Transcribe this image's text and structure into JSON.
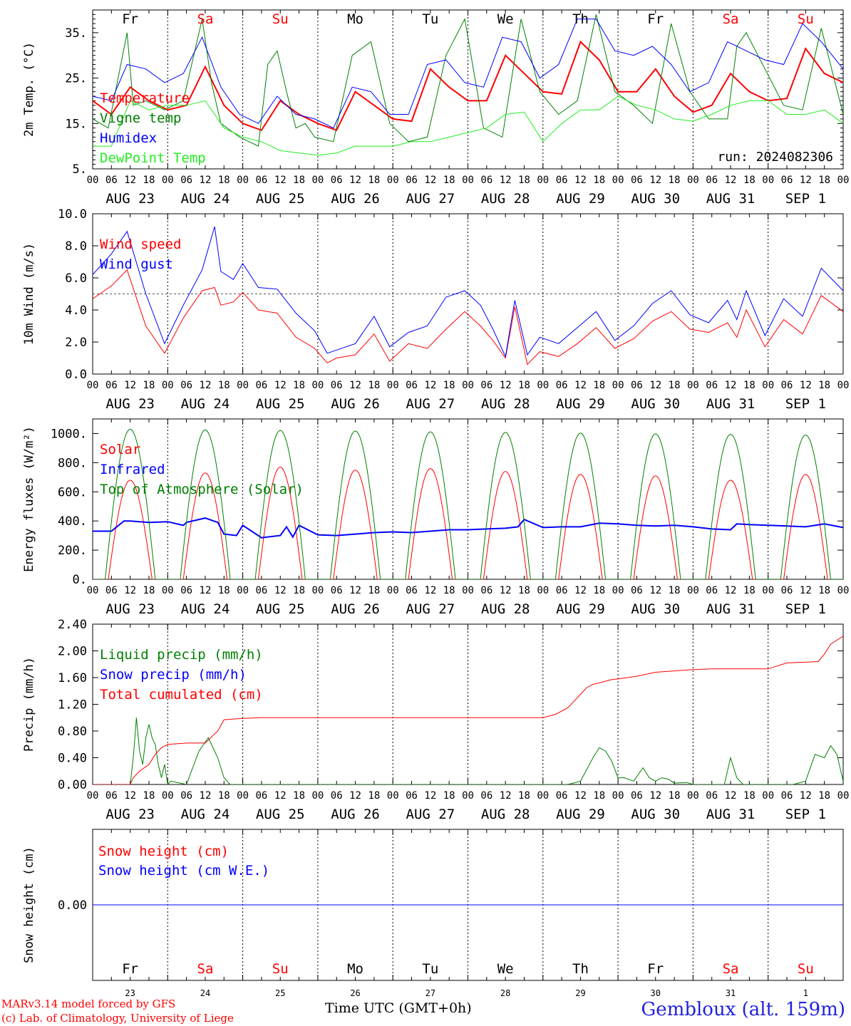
{
  "run_label": "run: 2024082306",
  "days": [
    "Fr",
    "Sa",
    "Su",
    "Mo",
    "Tu",
    "We",
    "Th",
    "Fr",
    "Sa",
    "Su"
  ],
  "weekend_flags": [
    false,
    true,
    true,
    false,
    false,
    false,
    false,
    false,
    true,
    true
  ],
  "date_labels": [
    "AUG 23",
    "AUG 24",
    "AUG 25",
    "AUG 26",
    "AUG 27",
    "AUG 28",
    "AUG 29",
    "AUG 30",
    "AUG 31",
    "SEP  1"
  ],
  "day_numbers": [
    "23",
    "24",
    "25",
    "26",
    "27",
    "28",
    "29",
    "30",
    "31",
    "1"
  ],
  "hour_ticks": [
    "00",
    "06",
    "12",
    "18"
  ],
  "end_tick": "00",
  "footer": {
    "model": "MARv3.14 model forced by GFS",
    "credit": "(c) Lab. of Climatology, University of Liege",
    "time_axis": "Time UTC (GMT+0h)",
    "station": "Gembloux (alt. 159m)"
  },
  "colors": {
    "red": "#ff0000",
    "green": "#008000",
    "blue": "#0000ff",
    "lightgreen": "#22ee22",
    "weekend": "#ff0000"
  },
  "chart_data": [
    {
      "id": "temp",
      "type": "line",
      "ylabel": "2m Temp. (°C)",
      "ylim": [
        5,
        40
      ],
      "yticks": [
        5,
        15,
        25,
        35
      ],
      "ytick_labels": [
        "5.",
        "15.",
        "25.",
        "35."
      ],
      "x_unit": "hours since 2024-08-23 00 UTC",
      "xlim": [
        0,
        240
      ],
      "series": [
        {
          "name": "Temperature",
          "color": "#ff0000",
          "width": 2,
          "x": [
            0,
            6,
            12,
            18,
            24,
            30,
            36,
            42,
            48,
            54,
            60,
            66,
            72,
            78,
            84,
            90,
            96,
            102,
            108,
            114,
            120,
            126,
            132,
            138,
            144,
            150,
            156,
            162,
            168,
            174,
            180,
            186,
            192,
            198,
            204,
            210,
            216,
            222,
            228,
            234,
            240
          ],
          "y": [
            20,
            17,
            23,
            20,
            18,
            19,
            27.5,
            19,
            15,
            13.5,
            20,
            17,
            15,
            13.5,
            22,
            19,
            16,
            15.5,
            27,
            23,
            20,
            20,
            30,
            26,
            22,
            21.5,
            33,
            29,
            22,
            22,
            27,
            21,
            17.5,
            19,
            26,
            22,
            20,
            20.5,
            31.5,
            26,
            24
          ]
        },
        {
          "name": "Vigne temp",
          "color": "#008000",
          "width": 1,
          "x": [
            0,
            5,
            11,
            13,
            17,
            23,
            29,
            35,
            38,
            41,
            47,
            53,
            56,
            59,
            62,
            65,
            68,
            71,
            77,
            83,
            89,
            95,
            101,
            107,
            113,
            119,
            125,
            131,
            137,
            143,
            149,
            155,
            161,
            167,
            173,
            179,
            185,
            191,
            197,
            203,
            206,
            209,
            215,
            221,
            227,
            233,
            240
          ],
          "y": [
            16,
            14,
            35,
            19,
            20,
            18,
            20,
            38,
            24,
            15,
            12,
            10,
            28,
            31,
            22,
            14,
            15,
            12,
            11,
            30,
            33,
            15,
            11,
            12,
            30,
            38,
            14,
            12,
            38,
            22,
            17,
            20,
            39,
            22,
            19,
            15,
            37,
            22,
            16,
            16,
            32,
            35,
            27,
            19,
            18,
            36,
            17
          ]
        },
        {
          "name": "Humidex",
          "color": "#0000ff",
          "width": 1,
          "x": [
            0,
            6,
            11,
            17,
            23,
            29,
            35,
            41,
            47,
            53,
            59,
            65,
            71,
            77,
            83,
            89,
            95,
            101,
            107,
            113,
            119,
            125,
            131,
            137,
            143,
            149,
            155,
            161,
            167,
            173,
            179,
            185,
            191,
            197,
            203,
            209,
            215,
            221,
            227,
            233,
            240
          ],
          "y": [
            21,
            20,
            28,
            27,
            24,
            26,
            34,
            23,
            17,
            15,
            21,
            17,
            16,
            14,
            23,
            22,
            17,
            17,
            28,
            29,
            24,
            23,
            34,
            33,
            25,
            28,
            38,
            38,
            31,
            30,
            32,
            28,
            22,
            24,
            33,
            31,
            29,
            28,
            37,
            33,
            27
          ]
        },
        {
          "name": "DewPoint Temp",
          "color": "#22ee22",
          "width": 1,
          "x": [
            0,
            6,
            12,
            18,
            24,
            30,
            36,
            42,
            48,
            54,
            60,
            66,
            72,
            78,
            84,
            90,
            96,
            102,
            108,
            114,
            120,
            126,
            132,
            138,
            144,
            150,
            156,
            162,
            168,
            174,
            180,
            186,
            192,
            198,
            204,
            210,
            216,
            222,
            228,
            234,
            240
          ],
          "y": [
            10,
            10,
            20,
            18,
            19,
            19,
            20,
            14,
            12,
            11,
            9,
            8.5,
            8,
            8.5,
            10,
            10,
            10,
            11,
            11,
            12,
            13,
            14,
            17,
            17.5,
            11,
            15,
            18,
            18,
            21,
            19,
            18,
            16,
            15.5,
            17,
            19,
            20,
            20,
            17,
            17,
            18,
            15
          ]
        }
      ]
    },
    {
      "id": "wind",
      "type": "line",
      "ylabel": "10m Wind (m/s)",
      "ylim": [
        0,
        10
      ],
      "yticks": [
        0,
        2,
        4,
        6,
        8,
        10
      ],
      "ytick_labels": [
        "0.0",
        "2.0",
        "4.0",
        "6.0",
        "8.0",
        "10.0"
      ],
      "ref_line": 5,
      "x_unit": "hours since 2024-08-23 00 UTC",
      "xlim": [
        0,
        240
      ],
      "series": [
        {
          "name": "Wind speed",
          "color": "#ff0000",
          "width": 1,
          "x": [
            0,
            6,
            11,
            17,
            23,
            29,
            35,
            39,
            41,
            45,
            48,
            53,
            59,
            65,
            71,
            75,
            78,
            84,
            90,
            95,
            101,
            107,
            113,
            119,
            124,
            128,
            132,
            135,
            139,
            143,
            149,
            155,
            161,
            167,
            173,
            179,
            185,
            191,
            197,
            203,
            206,
            209,
            215,
            221,
            227,
            233,
            240
          ],
          "y": [
            4.7,
            5.5,
            6.5,
            3,
            1.3,
            3.5,
            5.2,
            5.4,
            4.3,
            4.5,
            5.1,
            4,
            3.8,
            2.3,
            1.6,
            0.7,
            1,
            1.2,
            2.5,
            0.8,
            1.9,
            1.6,
            2.8,
            3.9,
            3,
            2.1,
            1,
            4.2,
            0.6,
            1.4,
            1.1,
            1.9,
            2.9,
            1.6,
            2.2,
            3.3,
            3.9,
            2.8,
            2.6,
            3.2,
            2.3,
            4,
            1.7,
            3.4,
            2.5,
            4.9,
            3.9
          ]
        },
        {
          "name": "Wind gust",
          "color": "#0000ff",
          "width": 1,
          "x": [
            0,
            6,
            11,
            17,
            23,
            29,
            35,
            39,
            41,
            45,
            48,
            53,
            59,
            65,
            71,
            75,
            78,
            84,
            90,
            95,
            101,
            107,
            113,
            119,
            124,
            128,
            132,
            135,
            139,
            143,
            149,
            155,
            161,
            167,
            173,
            179,
            185,
            191,
            197,
            203,
            206,
            209,
            215,
            221,
            227,
            233,
            240
          ],
          "y": [
            6.2,
            7.5,
            8.9,
            5,
            1.9,
            4.3,
            6.5,
            9.2,
            6.4,
            5.9,
            6.9,
            5.4,
            5.3,
            3.8,
            2.7,
            1.3,
            1.5,
            1.9,
            3.6,
            1.7,
            2.6,
            3,
            4.8,
            5.2,
            4.3,
            2.8,
            1.1,
            4.6,
            1.2,
            2.3,
            1.9,
            2.9,
            3.9,
            2.1,
            3,
            4.4,
            5.2,
            3.7,
            3.2,
            4.6,
            3.4,
            5.2,
            2.4,
            4.7,
            3.6,
            6.6,
            5.2
          ]
        }
      ]
    },
    {
      "id": "energy",
      "type": "line",
      "ylabel": "Energy fluxes (W/m²)",
      "ylim": [
        0,
        1100
      ],
      "yticks": [
        0,
        200,
        400,
        600,
        800,
        1000
      ],
      "ytick_labels": [
        "0.",
        "200.",
        "400.",
        "600.",
        "800.",
        "1000."
      ],
      "x_unit": "hours since 2024-08-23 00 UTC",
      "xlim": [
        0,
        240
      ],
      "toa_peaks": [
        1030,
        1025,
        1022,
        1018,
        1012,
        1008,
        1003,
        998,
        995,
        990
      ],
      "solar_peaks": [
        680,
        730,
        770,
        750,
        760,
        740,
        720,
        710,
        680,
        720
      ],
      "series": [
        {
          "name": "Solar",
          "color": "#ff0000",
          "width": 1
        },
        {
          "name": "Infrared",
          "color": "#0000ff",
          "width": 2,
          "x": [
            0,
            6,
            10,
            12,
            18,
            24,
            29,
            30,
            36,
            40,
            42,
            46,
            48,
            54,
            60,
            62,
            64,
            66,
            72,
            78,
            84,
            90,
            96,
            102,
            108,
            114,
            120,
            126,
            132,
            136,
            138,
            144,
            150,
            156,
            162,
            168,
            174,
            180,
            186,
            192,
            198,
            204,
            206,
            210,
            216,
            222,
            228,
            234,
            240
          ],
          "y": [
            330,
            330,
            400,
            400,
            390,
            395,
            370,
            390,
            420,
            390,
            310,
            300,
            370,
            285,
            300,
            360,
            290,
            370,
            305,
            300,
            310,
            320,
            325,
            320,
            330,
            340,
            340,
            345,
            350,
            360,
            410,
            355,
            360,
            360,
            385,
            380,
            370,
            365,
            370,
            360,
            345,
            340,
            380,
            375,
            370,
            365,
            360,
            380,
            355
          ]
        },
        {
          "name": "Top of Atmosphere (Solar)",
          "color": "#008000",
          "width": 1
        }
      ]
    },
    {
      "id": "precip",
      "type": "line",
      "ylabel": "Precip (mm/h)",
      "ylim": [
        0,
        2.4
      ],
      "yticks": [
        0,
        0.4,
        0.8,
        1.2,
        1.6,
        2.0,
        2.4
      ],
      "ytick_labels": [
        "0.00",
        "0.40",
        "0.80",
        "1.20",
        "1.60",
        "2.00",
        "2.40"
      ],
      "x_unit": "hours since 2024-08-23 00 UTC",
      "xlim": [
        0,
        240
      ],
      "series": [
        {
          "name": "Liquid precip (mm/h)",
          "color": "#008000",
          "width": 1,
          "x": [
            0,
            12,
            13,
            14,
            15,
            16,
            17,
            18,
            19,
            20,
            21,
            22,
            23,
            24,
            25,
            30,
            34,
            37,
            40,
            42,
            44,
            60,
            144,
            152,
            156,
            160,
            162,
            164,
            166,
            168,
            170,
            173,
            176,
            178,
            180,
            182,
            184,
            186,
            190,
            192,
            202,
            204,
            206,
            208,
            212,
            224,
            228,
            231,
            234,
            236,
            238,
            240
          ],
          "y": [
            0,
            0,
            0.4,
            1,
            0.5,
            0.3,
            0.7,
            0.9,
            0.7,
            0.6,
            0.3,
            0.1,
            0.3,
            0,
            0.05,
            0,
            0.5,
            0.7,
            0.4,
            0.1,
            0,
            0,
            0,
            0,
            0.05,
            0.4,
            0.55,
            0.5,
            0.35,
            0.1,
            0.1,
            0.05,
            0.25,
            0.1,
            0.05,
            0.1,
            0.08,
            0.02,
            0.03,
            0,
            0,
            0.4,
            0.1,
            0,
            0,
            0,
            0.05,
            0.45,
            0.4,
            0.58,
            0.45,
            0.05
          ]
        },
        {
          "name": "Snow precip (mm/h)",
          "color": "#0000ff",
          "width": 1,
          "x": [],
          "y": []
        },
        {
          "name": "Total cumulated (cm)",
          "color": "#ff0000",
          "width": 1,
          "x": [
            0,
            12,
            13,
            15,
            18,
            20,
            22,
            24,
            30,
            36,
            40,
            42,
            48,
            54,
            60,
            72,
            96,
            120,
            144,
            148,
            152,
            154,
            156,
            158,
            160,
            162,
            166,
            168,
            174,
            180,
            186,
            192,
            198,
            204,
            210,
            216,
            222,
            228,
            232,
            234,
            236,
            240
          ],
          "y": [
            0,
            0,
            0.1,
            0.2,
            0.3,
            0.45,
            0.55,
            0.6,
            0.62,
            0.62,
            0.8,
            0.97,
            0.99,
            1.0,
            1.0,
            1.0,
            1.0,
            1.0,
            1.0,
            1.05,
            1.15,
            1.25,
            1.35,
            1.45,
            1.5,
            1.52,
            1.57,
            1.58,
            1.62,
            1.68,
            1.7,
            1.72,
            1.73,
            1.73,
            1.73,
            1.73,
            1.82,
            1.83,
            1.84,
            1.95,
            2.1,
            2.22
          ]
        }
      ]
    },
    {
      "id": "snow",
      "type": "line",
      "ylabel": "Snow height (cm)",
      "ylim": [
        -1,
        1
      ],
      "yticks": [
        0
      ],
      "ytick_labels": [
        "0.00"
      ],
      "x_unit": "hours since 2024-08-23 00 UTC",
      "xlim": [
        0,
        240
      ],
      "series": [
        {
          "name": "Snow height (cm)",
          "color": "#ff0000",
          "width": 1,
          "x": [
            0,
            240
          ],
          "y": [
            0,
            0
          ]
        },
        {
          "name": "Snow height (cm W.E.)",
          "color": "#0000ff",
          "width": 1,
          "x": [
            0,
            240
          ],
          "y": [
            0,
            0
          ]
        }
      ]
    }
  ]
}
